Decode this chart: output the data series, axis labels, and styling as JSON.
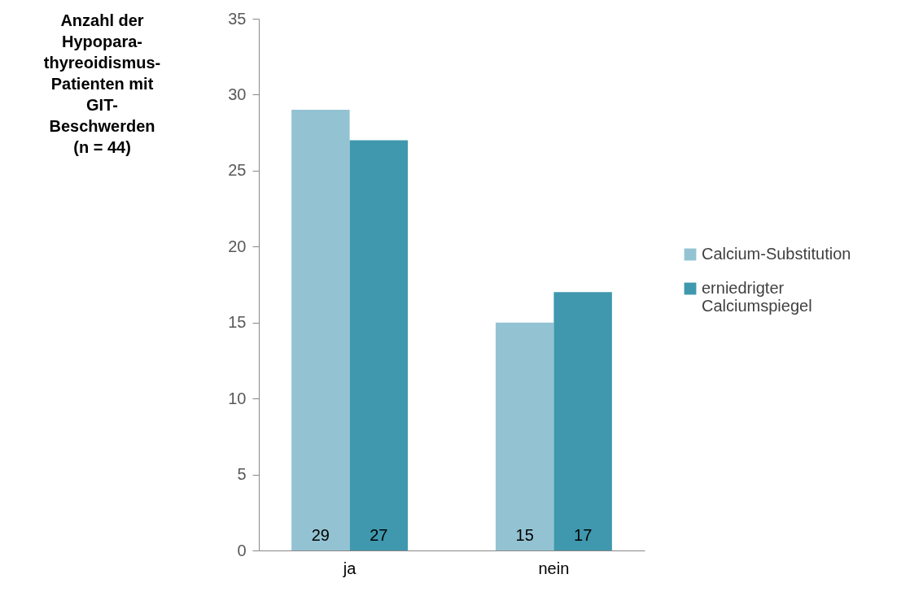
{
  "chart_data": {
    "type": "bar",
    "ylabel": "Anzahl der\nHypopara-\nthyreoidismus-\nPatienten mit\nGIT-\nBeschwerden\n(n = 44)",
    "categories": [
      "ja",
      "nein"
    ],
    "series": [
      {
        "name": "Calcium-Substitution",
        "color": "#93c3d3",
        "values": [
          29,
          15
        ]
      },
      {
        "name": "erniedrigter Calciumspiegel",
        "color": "#3f98ad",
        "values": [
          27,
          17
        ]
      }
    ],
    "ylim": [
      0,
      35
    ],
    "yticks": [
      0,
      5,
      10,
      15,
      20,
      25,
      30,
      35
    ],
    "grid": false,
    "legend": "right",
    "data_labels": true
  }
}
